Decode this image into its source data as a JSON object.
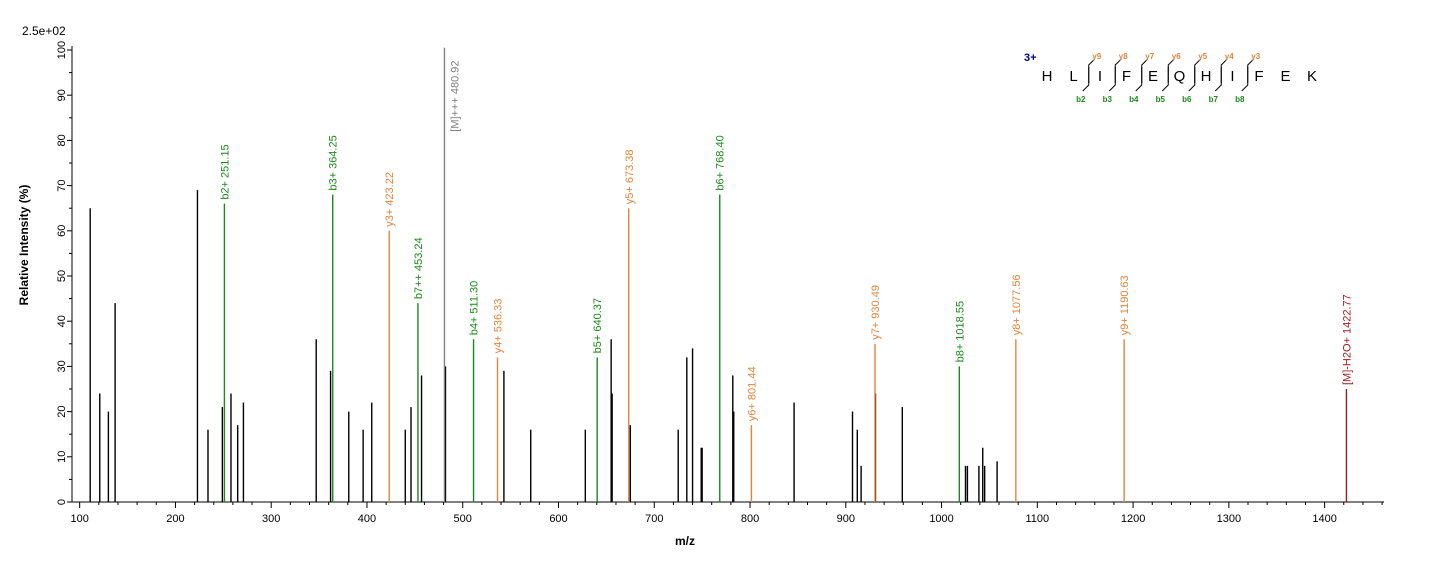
{
  "scale_label": "2.5e+02",
  "colors": {
    "unmatched": "#000000",
    "b_ion": "#1a8a1a",
    "y_ion": "#e6833b",
    "precursor": "#808080",
    "neutral_loss": "#9b1c1c",
    "charge": "#00008b"
  },
  "chart_data": {
    "type": "bar",
    "xlabel": "m/z",
    "ylabel": "Relative   Intensity (%)",
    "xlim": [
      92,
      1462
    ],
    "ylim": [
      0,
      100
    ],
    "x_ticks": [
      100,
      200,
      300,
      400,
      500,
      600,
      700,
      800,
      900,
      1000,
      1100,
      1200,
      1300,
      1400
    ],
    "x_tick_labels": [
      "100",
      "200",
      "300",
      "400",
      "500",
      "600",
      "700",
      "800",
      "900",
      "1000",
      "1100",
      "1200",
      "1300",
      "1400"
    ],
    "y_ticks": [
      0,
      10,
      20,
      30,
      40,
      50,
      60,
      70,
      80,
      90,
      100
    ],
    "y_tick_labels": [
      "0",
      "10",
      "20",
      "30",
      "40",
      "50",
      "60",
      "70",
      "80",
      "90",
      "100"
    ],
    "labeled_peaks": [
      {
        "mz": 251.15,
        "intensity": 66,
        "label": "b2+ 251.15",
        "type": "b"
      },
      {
        "mz": 364.25,
        "intensity": 68,
        "label": "b3+ 364.25",
        "type": "b"
      },
      {
        "mz": 423.22,
        "intensity": 60,
        "label": "y3+ 423.22",
        "type": "y"
      },
      {
        "mz": 453.24,
        "intensity": 44,
        "label": "b7++ 453.24",
        "type": "b"
      },
      {
        "mz": 480.92,
        "intensity": 101,
        "label": "[M]+++ 480.92",
        "type": "precursor"
      },
      {
        "mz": 511.3,
        "intensity": 36,
        "label": "b4+ 511.30",
        "type": "b"
      },
      {
        "mz": 536.33,
        "intensity": 32,
        "label": "y4+ 536.33",
        "type": "y"
      },
      {
        "mz": 640.37,
        "intensity": 32,
        "label": "b5+ 640.37",
        "type": "b"
      },
      {
        "mz": 673.38,
        "intensity": 65,
        "label": "y5+ 673.38",
        "type": "y"
      },
      {
        "mz": 768.4,
        "intensity": 68,
        "label": "b6+ 768.40",
        "type": "b"
      },
      {
        "mz": 801.44,
        "intensity": 17,
        "label": "y6+ 801.44",
        "type": "y"
      },
      {
        "mz": 930.49,
        "intensity": 35,
        "label": "y7+ 930.49",
        "type": "y"
      },
      {
        "mz": 1018.55,
        "intensity": 30,
        "label": "b8+ 1018.55",
        "type": "b"
      },
      {
        "mz": 1077.56,
        "intensity": 36,
        "label": "y8+ 1077.56",
        "type": "y"
      },
      {
        "mz": 1190.63,
        "intensity": 36,
        "label": "y9+ 1190.63",
        "type": "y"
      },
      {
        "mz": 1422.77,
        "intensity": 25,
        "label": "[M]-H2O+ 1422.77",
        "type": "loss"
      }
    ],
    "unlabeled_peaks": [
      {
        "mz": 111,
        "intensity": 65
      },
      {
        "mz": 121,
        "intensity": 24
      },
      {
        "mz": 130,
        "intensity": 20
      },
      {
        "mz": 137,
        "intensity": 44
      },
      {
        "mz": 223,
        "intensity": 69
      },
      {
        "mz": 234,
        "intensity": 16
      },
      {
        "mz": 249,
        "intensity": 21
      },
      {
        "mz": 258,
        "intensity": 24
      },
      {
        "mz": 265,
        "intensity": 17
      },
      {
        "mz": 271,
        "intensity": 22
      },
      {
        "mz": 347,
        "intensity": 36
      },
      {
        "mz": 362,
        "intensity": 29
      },
      {
        "mz": 381,
        "intensity": 20
      },
      {
        "mz": 396,
        "intensity": 16
      },
      {
        "mz": 405,
        "intensity": 22
      },
      {
        "mz": 440,
        "intensity": 16
      },
      {
        "mz": 446,
        "intensity": 21
      },
      {
        "mz": 457,
        "intensity": 28
      },
      {
        "mz": 482,
        "intensity": 30
      },
      {
        "mz": 543,
        "intensity": 29
      },
      {
        "mz": 571,
        "intensity": 16
      },
      {
        "mz": 628,
        "intensity": 16
      },
      {
        "mz": 655,
        "intensity": 36
      },
      {
        "mz": 656,
        "intensity": 24
      },
      {
        "mz": 675,
        "intensity": 17
      },
      {
        "mz": 725,
        "intensity": 16
      },
      {
        "mz": 734,
        "intensity": 32
      },
      {
        "mz": 740,
        "intensity": 34
      },
      {
        "mz": 749,
        "intensity": 12
      },
      {
        "mz": 750,
        "intensity": 12
      },
      {
        "mz": 782,
        "intensity": 28
      },
      {
        "mz": 783,
        "intensity": 20
      },
      {
        "mz": 846,
        "intensity": 22
      },
      {
        "mz": 907,
        "intensity": 20
      },
      {
        "mz": 912,
        "intensity": 16
      },
      {
        "mz": 916,
        "intensity": 8
      },
      {
        "mz": 931,
        "intensity": 24
      },
      {
        "mz": 959,
        "intensity": 21
      },
      {
        "mz": 1025,
        "intensity": 8
      },
      {
        "mz": 1027,
        "intensity": 8
      },
      {
        "mz": 1039,
        "intensity": 8
      },
      {
        "mz": 1043,
        "intensity": 12
      },
      {
        "mz": 1045,
        "intensity": 8
      },
      {
        "mz": 1058,
        "intensity": 9
      }
    ]
  },
  "sequence": {
    "charge": "3+",
    "residues": [
      "H",
      "L",
      "I",
      "F",
      "E",
      "Q",
      "H",
      "I",
      "F",
      "E",
      "K"
    ],
    "y_ions": [
      {
        "after": 2,
        "label": "y9"
      },
      {
        "after": 3,
        "label": "y8"
      },
      {
        "after": 4,
        "label": "y7"
      },
      {
        "after": 5,
        "label": "y6"
      },
      {
        "after": 6,
        "label": "y5"
      },
      {
        "after": 7,
        "label": "y4"
      },
      {
        "after": 8,
        "label": "y3"
      }
    ],
    "b_ions": [
      {
        "after": 2,
        "label": "b2"
      },
      {
        "after": 3,
        "label": "b3"
      },
      {
        "after": 4,
        "label": "b4"
      },
      {
        "after": 5,
        "label": "b5"
      },
      {
        "after": 6,
        "label": "b6"
      },
      {
        "after": 7,
        "label": "b7"
      },
      {
        "after": 8,
        "label": "b8"
      }
    ]
  }
}
